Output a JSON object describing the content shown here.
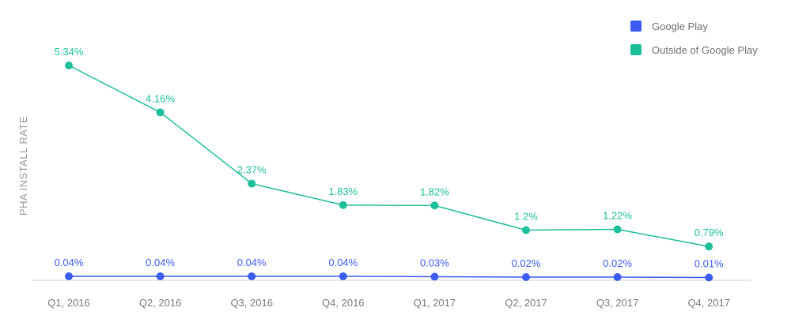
{
  "chart_data": {
    "type": "line",
    "title": "",
    "xlabel": "",
    "ylabel": "PHA INSTALL RATE",
    "categories": [
      "Q1, 2016",
      "Q2, 2016",
      "Q3, 2016",
      "Q4, 2016",
      "Q1, 2017",
      "Q2, 2017",
      "Q3, 2017",
      "Q4, 2017"
    ],
    "ylim": [
      0,
      5.5
    ],
    "grid": false,
    "legend": "top-right",
    "series": [
      {
        "name": "Google Play",
        "color": "#3b5cf0",
        "values": [
          0.04,
          0.04,
          0.04,
          0.04,
          0.03,
          0.02,
          0.02,
          0.01
        ],
        "labels": [
          "0.04%",
          "0.04%",
          "0.04%",
          "0.04%",
          "0.03%",
          "0.02%",
          "0.02%",
          "0.01%"
        ]
      },
      {
        "name": "Outside of Google Play",
        "color": "#1dbf9a",
        "values": [
          5.34,
          4.16,
          2.37,
          1.83,
          1.82,
          1.2,
          1.22,
          0.79
        ],
        "labels": [
          "5.34%",
          "4.16%",
          "2.37%",
          "1.83%",
          "1.82%",
          "1.2%",
          "1.22%",
          "0.79%"
        ]
      }
    ]
  }
}
